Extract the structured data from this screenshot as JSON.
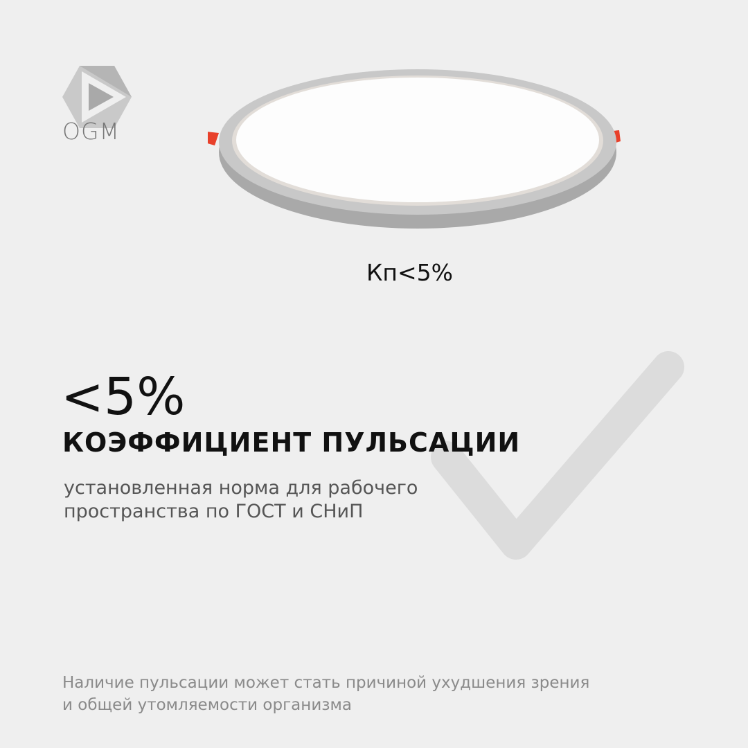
{
  "brand": {
    "logo_text": "OGM"
  },
  "product": {
    "caption": "Кп<5%"
  },
  "headline": {
    "value": "<5%",
    "title": "КОЭФФИЦИЕНТ ПУЛЬСАЦИИ"
  },
  "description": {
    "line1": "установленная норма для рабочего",
    "line2": "пространства по ГОСТ и СНиП"
  },
  "footnote": {
    "line1": "Наличие пульсации может стать причиной ухудшения зрения",
    "line2": "и общей утомляемости организма"
  },
  "colors": {
    "background": "#efefef",
    "clip_accent": "#e8402a",
    "checkmark": "#dcdcdc"
  }
}
